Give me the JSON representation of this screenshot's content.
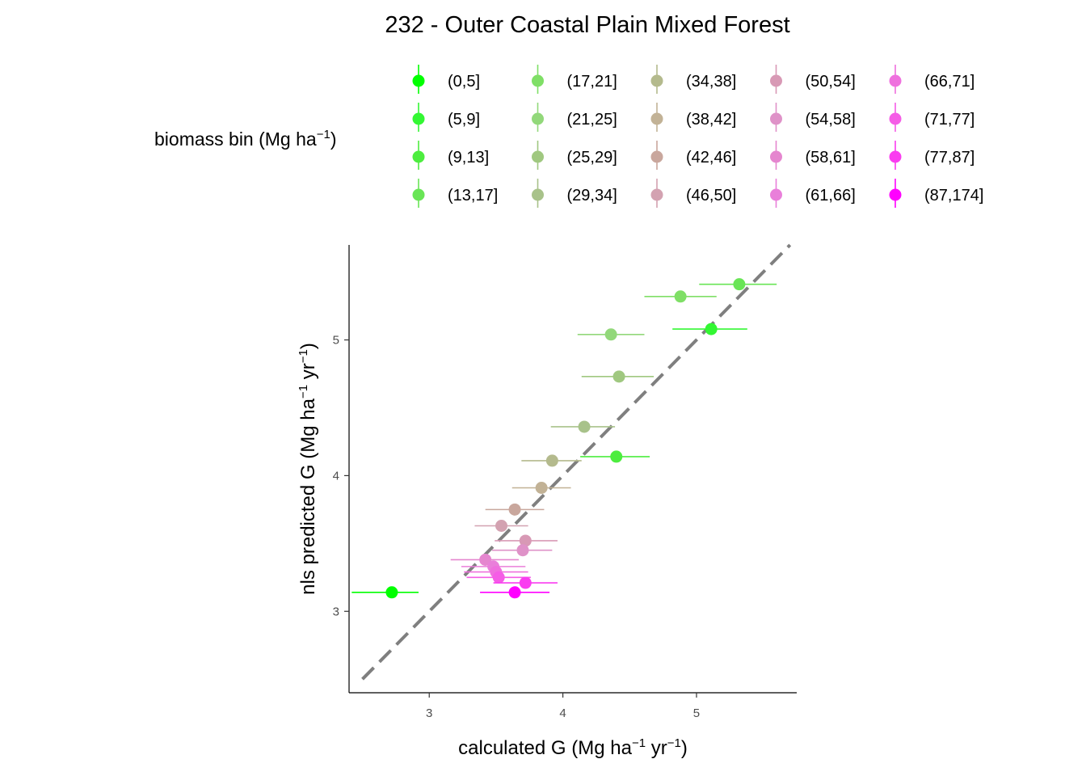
{
  "chart_data": {
    "type": "scatter",
    "title": "232 - Outer Coastal Plain Mixed Forest",
    "xlabel": "calculated G (Mg ha^-1 yr^-1)",
    "ylabel": "nls predicted G (Mg ha^-1 yr^-1)",
    "xlabel_parts": [
      "calculated G (Mg ha",
      "−1",
      " yr",
      "−1",
      ")"
    ],
    "ylabel_parts": [
      "nls predicted G (Mg ha",
      "−1",
      " yr",
      "−1",
      ")"
    ],
    "xlim": [
      2.4,
      5.75
    ],
    "ylim": [
      2.4,
      5.7
    ],
    "x_ticks": [
      3,
      4,
      5
    ],
    "y_ticks": [
      3,
      4,
      5
    ],
    "identity_line": {
      "from": [
        2.5,
        2.5
      ],
      "to": [
        5.7,
        5.7
      ],
      "style": "dashed",
      "color": "#7f7f7f"
    },
    "legend": {
      "title_parts": [
        "biomass bin (Mg ha",
        "−1",
        ")"
      ],
      "position": "top",
      "columns": 5
    },
    "series": [
      {
        "name": "(0,5]",
        "color": "#00ff00",
        "x": 2.72,
        "y": 3.14,
        "xerr": [
          2.42,
          2.92
        ]
      },
      {
        "name": "(5,9]",
        "color": "#33f733",
        "x": 5.11,
        "y": 5.08,
        "xerr": [
          4.82,
          5.38
        ]
      },
      {
        "name": "(9,13]",
        "color": "#4ded3f",
        "x": 4.4,
        "y": 4.14,
        "xerr": [
          4.13,
          4.65
        ]
      },
      {
        "name": "(13,17]",
        "color": "#69e556",
        "x": 5.32,
        "y": 5.41,
        "xerr": [
          5.02,
          5.6
        ]
      },
      {
        "name": "(17,21]",
        "color": "#7fdf66",
        "x": 4.88,
        "y": 5.32,
        "xerr": [
          4.61,
          5.15
        ]
      },
      {
        "name": "(21,25]",
        "color": "#92d87a",
        "x": 4.36,
        "y": 5.04,
        "xerr": [
          4.11,
          4.61
        ]
      },
      {
        "name": "(25,29]",
        "color": "#a0c880",
        "x": 4.42,
        "y": 4.73,
        "xerr": [
          4.14,
          4.68
        ]
      },
      {
        "name": "(29,34]",
        "color": "#a8c28a",
        "x": 4.16,
        "y": 4.36,
        "xerr": [
          3.91,
          4.39
        ]
      },
      {
        "name": "(34,38]",
        "color": "#b4ba8d",
        "x": 3.92,
        "y": 4.11,
        "xerr": [
          3.69,
          4.14
        ]
      },
      {
        "name": "(38,42]",
        "color": "#c2b296",
        "x": 3.84,
        "y": 3.91,
        "xerr": [
          3.62,
          4.06
        ]
      },
      {
        "name": "(42,46]",
        "color": "#c9a79d",
        "x": 3.64,
        "y": 3.75,
        "xerr": [
          3.42,
          3.86
        ]
      },
      {
        "name": "(46,50]",
        "color": "#d3a2b1",
        "x": 3.54,
        "y": 3.63,
        "xerr": [
          3.34,
          3.74
        ]
      },
      {
        "name": "(50,54]",
        "color": "#d899b5",
        "x": 3.72,
        "y": 3.52,
        "xerr": [
          3.49,
          3.96
        ]
      },
      {
        "name": "(54,58]",
        "color": "#df92c8",
        "x": 3.7,
        "y": 3.45,
        "xerr": [
          3.47,
          3.92
        ]
      },
      {
        "name": "(58,61]",
        "color": "#e586cf",
        "x": 3.42,
        "y": 3.38,
        "xerr": [
          3.16,
          3.67
        ]
      },
      {
        "name": "(61,66]",
        "color": "#e97fda",
        "x": 3.48,
        "y": 3.33,
        "xerr": [
          3.24,
          3.72
        ]
      },
      {
        "name": "(66,71]",
        "color": "#ef70de",
        "x": 3.5,
        "y": 3.29,
        "xerr": [
          3.26,
          3.74
        ]
      },
      {
        "name": "(71,77]",
        "color": "#f55ce6",
        "x": 3.52,
        "y": 3.25,
        "xerr": [
          3.28,
          3.76
        ]
      },
      {
        "name": "(77,87]",
        "color": "#fa3cf0",
        "x": 3.72,
        "y": 3.21,
        "xerr": [
          3.48,
          3.96
        ]
      },
      {
        "name": "(87,174]",
        "color": "#ff00ff",
        "x": 3.64,
        "y": 3.14,
        "xerr": [
          3.38,
          3.9
        ]
      }
    ]
  }
}
